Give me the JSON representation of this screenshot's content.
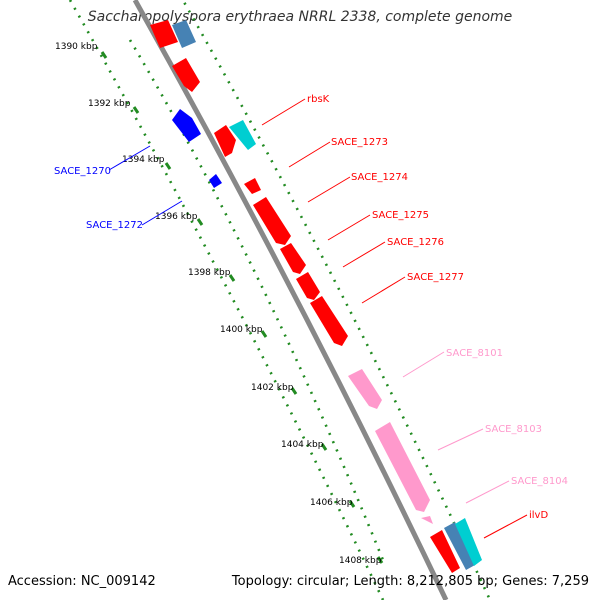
{
  "title": "Saccharopolyspora erythraea NRRL 2338, complete genome",
  "footer": {
    "accession": "Accession: NC_009142",
    "summary": "Topology: circular; Length: 8,212,805 bp; Genes: 7,259"
  },
  "colors": {
    "backbone": "#888888",
    "ruler": "#228B22",
    "red_gene": "#FF0000",
    "blue_gene": "#0000FF",
    "pink_gene": "#FF99CC",
    "steelblue_gene": "#4682B4",
    "cyan_gene": "#00CED1"
  },
  "ticks": [
    "1390 kbp",
    "1392 kbp",
    "1394 kbp",
    "1396 kbp",
    "1398 kbp",
    "1400 kbp",
    "1402 kbp",
    "1404 kbp",
    "1406 kbp",
    "1408 kbp"
  ],
  "gene_labels": [
    {
      "text": "rbsK",
      "color": "#FF0000"
    },
    {
      "text": "SACE_1273",
      "color": "#FF0000"
    },
    {
      "text": "SACE_1274",
      "color": "#FF0000"
    },
    {
      "text": "SACE_1275",
      "color": "#FF0000"
    },
    {
      "text": "SACE_1276",
      "color": "#FF0000"
    },
    {
      "text": "SACE_1277",
      "color": "#FF0000"
    },
    {
      "text": "SACE_8101",
      "color": "#FF99CC"
    },
    {
      "text": "SACE_8103",
      "color": "#FF99CC"
    },
    {
      "text": "SACE_8104",
      "color": "#FF99CC"
    },
    {
      "text": "ilvD",
      "color": "#FF0000"
    },
    {
      "text": "SACE_1270",
      "color": "#0000FF"
    },
    {
      "text": "SACE_1272",
      "color": "#0000FF"
    }
  ]
}
